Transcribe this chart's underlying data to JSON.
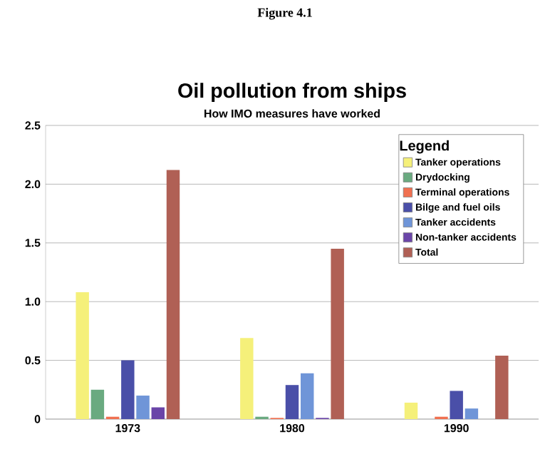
{
  "chart_data": {
    "type": "bar",
    "title": "Oil pollution from ships",
    "subtitle": "How IMO measures have worked",
    "annotations": [
      "Figure 4.1"
    ],
    "categories": [
      "1973",
      "1980",
      "1990"
    ],
    "series": [
      {
        "name": "Tanker operations",
        "color": "#f5f07a",
        "values": [
          1.08,
          0.69,
          0.14
        ]
      },
      {
        "name": "Drydocking",
        "color": "#6aaa80",
        "values": [
          0.25,
          0.02,
          0
        ]
      },
      {
        "name": "Terminal operations",
        "color": "#f07050",
        "values": [
          0.02,
          0.01,
          0.02
        ]
      },
      {
        "name": "Bilge and fuel oils",
        "color": "#4a4fa8",
        "values": [
          0.5,
          0.29,
          0.24
        ]
      },
      {
        "name": "Tanker accidents",
        "color": "#6f95d8",
        "values": [
          0.2,
          0.39,
          0.09
        ]
      },
      {
        "name": "Non-tanker accidents",
        "color": "#6a45a8",
        "values": [
          0.1,
          0.01,
          0
        ]
      },
      {
        "name": "Total",
        "color": "#b06055",
        "values": [
          2.12,
          1.45,
          0.54
        ]
      }
    ],
    "legend_title": "Legend",
    "legend": "top right",
    "grid": "y",
    "ylim": [
      0,
      2.5
    ],
    "yticks": [
      {
        "value": 0,
        "label": "0"
      },
      {
        "value": 0.5,
        "label": "0.5"
      },
      {
        "value": 1,
        "label": "1.0"
      },
      {
        "value": 1.5,
        "label": "1.5"
      },
      {
        "value": 2,
        "label": "2.0"
      },
      {
        "value": 2.5,
        "label": "2.5"
      }
    ]
  }
}
